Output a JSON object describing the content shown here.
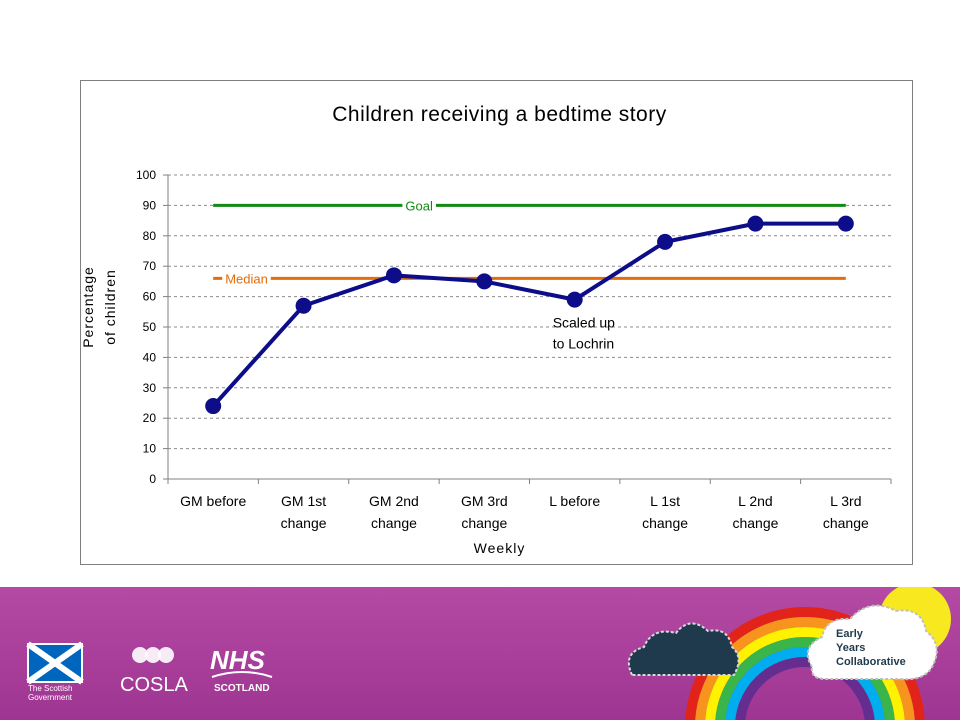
{
  "chart_data": {
    "type": "line",
    "title": "Children receiving a bedtime story",
    "xlabel": "Weekly",
    "ylabel_lines": [
      "Percentage",
      "of children"
    ],
    "ylim": [
      0,
      100
    ],
    "yticks": [
      0,
      10,
      20,
      30,
      40,
      50,
      60,
      70,
      80,
      90,
      100
    ],
    "grid": true,
    "categories": [
      [
        "GM before"
      ],
      [
        "GM 1st",
        "change"
      ],
      [
        "GM 2nd",
        "change"
      ],
      [
        "GM 3rd",
        "change"
      ],
      [
        "L before"
      ],
      [
        "L 1st",
        "change"
      ],
      [
        "L 2nd",
        "change"
      ],
      [
        "L 3rd",
        "change"
      ]
    ],
    "series": [
      {
        "values": [
          24,
          57,
          67,
          65,
          59,
          78,
          84,
          84
        ],
        "color": "#0d0d8a"
      }
    ],
    "reference_lines": [
      {
        "name": "Goal",
        "value": 90,
        "color": "#138a13"
      },
      {
        "name": "Median",
        "value": 66,
        "color": "#e46c0a"
      }
    ],
    "annotation": {
      "lines": [
        "Scaled up",
        "to Lochrin"
      ],
      "category_index": 4
    }
  },
  "footer": {
    "background": "#a63b98",
    "logos": {
      "scottish_gov": [
        "The Scottish",
        "Government"
      ],
      "cosla": "COSLA",
      "nhs": "NHS",
      "nhs_sub": "SCOTLAND",
      "eyc": [
        "Early",
        "Years",
        "Collaborative"
      ]
    }
  }
}
